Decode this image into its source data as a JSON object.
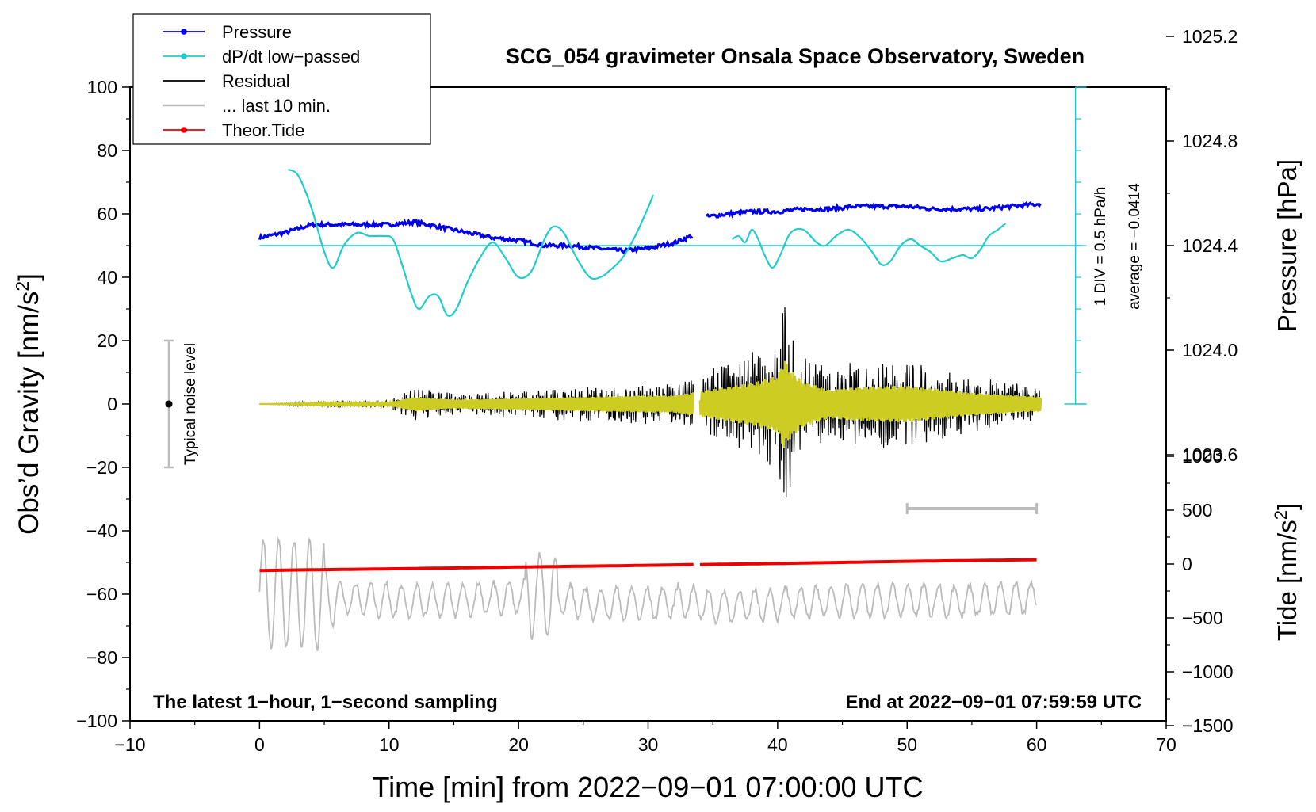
{
  "chart_data": {
    "type": "line",
    "title": "SCG_054 gravimeter Onsala Space Observatory, Sweden",
    "xlabel": "Time [min] from 2022−09−01 07:00:00 UTC",
    "ylabel_left": "Obs’d Gravity [nm/s²]",
    "ylabel_left_main": "Obs’d Gravity [nm/s",
    "ylabel_left_sup": "2",
    "ylabel_left_end": "]",
    "ylabel_pressure": "Pressure [hPa]",
    "ylabel_tide": "Tide [nm/s²]",
    "ylabel_tide_main": "Tide [nm/s",
    "ylabel_tide_sup": "2",
    "ylabel_tide_end": "]",
    "xlim": [
      -10,
      70
    ],
    "ylim": [
      -100,
      100
    ],
    "x_ticks": [
      "−10",
      "0",
      "10",
      "20",
      "30",
      "40",
      "50",
      "60",
      "70"
    ],
    "y_ticks": [
      "−100",
      "−80",
      "−60",
      "−40",
      "−20",
      "0",
      "20",
      "40",
      "60",
      "80",
      "100"
    ],
    "pressure_ticks": [
      "1023.6",
      "1024.0",
      "1024.4",
      "1024.8",
      "1025.2"
    ],
    "tide_ticks": [
      "−1500",
      "−1000",
      "−500",
      "0",
      "500",
      "1000"
    ],
    "bottom_left_note": "The latest 1−hour, 1−second sampling",
    "bottom_right_note": "End at 2022−09−01 07:59:59 UTC",
    "noise_label": "Typical noise level",
    "noise_bar": {
      "x": -7,
      "y": 0,
      "ymin": -20,
      "ymax": 20
    },
    "scale_div_label": "1 DIV = 0.5 hPa/h",
    "average_label": "average = −0.0414",
    "legend": [
      {
        "name": "Pressure",
        "color": "#0000ee",
        "marker": true
      },
      {
        "name": "dP/dt low−passed",
        "color": "#22cccc",
        "marker": true
      },
      {
        "name": "Residual",
        "color": "#000000",
        "marker": false
      },
      {
        "name": "... last 10 min.",
        "color": "#bbbbbb",
        "marker": false
      },
      {
        "name": "Theor.Tide",
        "color": "#ee0000",
        "marker": true
      }
    ],
    "series": [
      {
        "name": "Pressure",
        "color": "#0000ee",
        "axis": "pressure_hPa",
        "x": [
          0,
          2,
          4,
          6,
          8,
          10,
          12,
          14,
          16,
          18,
          20,
          22,
          24,
          26,
          28,
          30,
          32,
          33.5,
          34.5,
          36,
          38,
          40,
          42,
          44,
          46,
          48,
          50,
          52,
          54,
          56,
          58,
          60.4
        ],
        "values": [
          1024.43,
          1024.45,
          1024.48,
          1024.48,
          1024.48,
          1024.48,
          1024.49,
          1024.47,
          1024.45,
          1024.43,
          1024.42,
          1024.4,
          1024.4,
          1024.39,
          1024.38,
          1024.39,
          1024.41,
          1024.44,
          1024.51,
          1024.52,
          1024.53,
          1024.53,
          1024.54,
          1024.54,
          1024.55,
          1024.55,
          1024.55,
          1024.54,
          1024.54,
          1024.54,
          1024.55,
          1024.56
        ]
      },
      {
        "name": "dP/dt low−passed",
        "color": "#22cccc",
        "axis": "gravity_display",
        "x": [
          2.2,
          3,
          4,
          5,
          5.7,
          6.5,
          7.5,
          8.5,
          9.5,
          10.3,
          11,
          11.7,
          12.3,
          13.1,
          13.8,
          14.5,
          15.2,
          16,
          17,
          18,
          19,
          20,
          21,
          22,
          22.7,
          23.5,
          24.5,
          25.5,
          26.3,
          27,
          28,
          29,
          30,
          30.4
        ],
        "values": [
          74,
          72,
          62,
          48,
          43,
          50,
          54,
          53,
          53,
          52,
          44,
          35,
          30,
          34,
          34,
          28,
          30,
          38,
          46,
          51,
          46,
          40,
          42,
          52,
          56,
          54,
          46,
          40,
          40,
          42,
          46,
          53,
          62,
          66
        ]
      },
      {
        "name": "dP/dt low−passed (2)",
        "color": "#22cccc",
        "axis": "gravity_display",
        "x": [
          36.5,
          37,
          37.5,
          38,
          38.5,
          39,
          39.6,
          40.2,
          41,
          42,
          43,
          43.7,
          44.5,
          45.5,
          46.5,
          47.3,
          48,
          48.7,
          49.5,
          50.3,
          51,
          51.8,
          52.6,
          53.5,
          54.3,
          55,
          55.7,
          56.3,
          57,
          57.6
        ],
        "values": [
          52,
          53,
          51,
          55,
          52,
          47,
          43,
          47,
          54,
          55,
          51,
          50,
          53,
          55,
          52,
          48,
          44,
          45,
          50,
          52,
          50,
          48,
          45,
          46,
          47,
          46,
          49,
          53,
          55,
          57
        ]
      },
      {
        "name": "Residual",
        "color": "#000000",
        "axis": "gravity_nm_s2",
        "x": [
          0,
          5,
          10,
          12,
          15,
          20,
          25,
          30,
          32,
          34,
          36,
          38,
          40,
          40.5,
          41,
          42,
          44,
          46,
          50,
          55,
          60.4
        ],
        "values": [
          0,
          1,
          1,
          5,
          3,
          4,
          5,
          6,
          6,
          9,
          12,
          15,
          20,
          32,
          24,
          16,
          10,
          12,
          13,
          8,
          5
        ],
        "note": "high-frequency oscillation envelope amplitude (± nm/s²)"
      },
      {
        "name": "... last 10 min.",
        "color": "#bbbbbb",
        "axis": "gravity_display",
        "x": [
          0,
          2,
          4,
          6,
          10,
          15,
          20,
          22,
          25,
          30,
          33,
          35,
          40,
          45,
          50,
          55,
          60
        ],
        "values": [
          -60,
          -60,
          -60,
          -61,
          -62,
          -62,
          -61,
          -60,
          -63,
          -63,
          -62,
          -64,
          -63,
          -62,
          -62,
          -62,
          -61
        ],
        "note": "mean level of oscillating trace"
      },
      {
        "name": "Theor.Tide",
        "color": "#ee0000",
        "axis": "tide_nm_s2",
        "x": [
          0,
          10,
          20,
          30,
          33.5,
          34,
          40,
          50,
          60.4
        ],
        "values": [
          -60,
          -45,
          -28,
          -12,
          -5,
          -5,
          5,
          25,
          40
        ]
      }
    ]
  }
}
